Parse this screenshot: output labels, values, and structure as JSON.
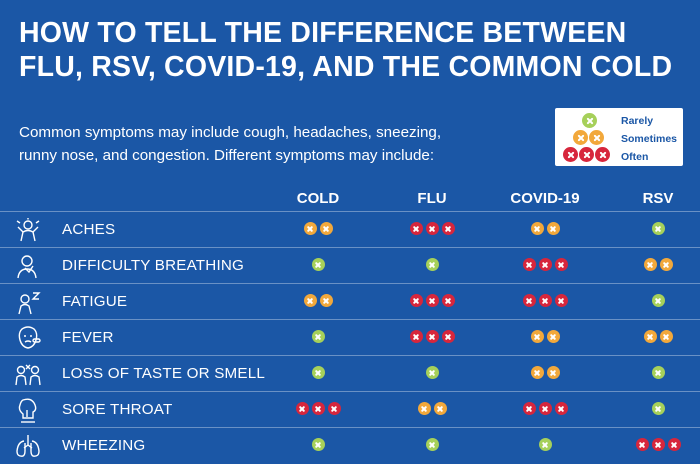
{
  "title": {
    "line1": "HOW TO TELL THE DIFFERENCE BETWEEN",
    "line2": "FLU, RSV, COVID-19, AND THE COMMON COLD"
  },
  "intro": {
    "line1": "Common symptoms may include cough, headaches, sneezing,",
    "line2": "runny nose, and congestion. Different symptoms may include:"
  },
  "legend": {
    "rarely": "Rarely",
    "sometimes": "Sometimes",
    "often": "Often"
  },
  "colors": {
    "background": "#1b57a6",
    "rarely": "#a6d05a",
    "sometimes": "#f2a83b",
    "often": "#d7263c"
  },
  "columns": [
    "COLD",
    "FLU",
    "COVID-19",
    "RSV"
  ],
  "rows": [
    {
      "symptom": "ACHES",
      "icon": "aches-icon",
      "cold": "sometimes",
      "flu": "often",
      "covid": "sometimes",
      "rsv": "rarely"
    },
    {
      "symptom": "DIFFICULTY BREATHING",
      "icon": "difficulty-breathing-icon",
      "cold": "rarely",
      "flu": "rarely",
      "covid": "often",
      "rsv": "sometimes"
    },
    {
      "symptom": "FATIGUE",
      "icon": "fatigue-icon",
      "cold": "sometimes",
      "flu": "often",
      "covid": "often",
      "rsv": "rarely"
    },
    {
      "symptom": "FEVER",
      "icon": "fever-icon",
      "cold": "rarely",
      "flu": "often",
      "covid": "sometimes",
      "rsv": "sometimes"
    },
    {
      "symptom": "LOSS OF TASTE OR SMELL",
      "icon": "loss-of-taste-icon",
      "cold": "rarely",
      "flu": "rarely",
      "covid": "sometimes",
      "rsv": "rarely"
    },
    {
      "symptom": "SORE THROAT",
      "icon": "sore-throat-icon",
      "cold": "often",
      "flu": "sometimes",
      "covid": "often",
      "rsv": "rarely"
    },
    {
      "symptom": "WHEEZING",
      "icon": "lungs-icon",
      "cold": "rarely",
      "flu": "rarely",
      "covid": "rarely",
      "rsv": "often"
    }
  ]
}
